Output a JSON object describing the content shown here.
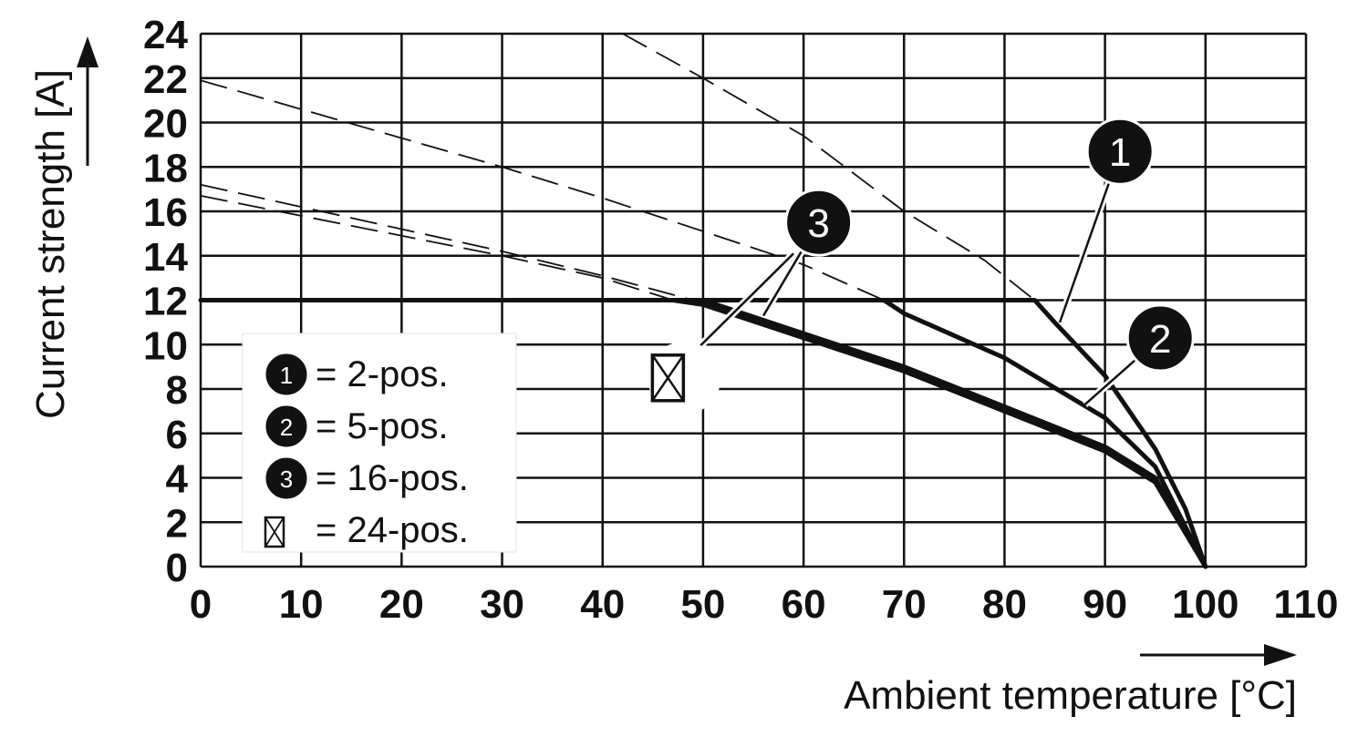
{
  "chart_data": {
    "type": "line",
    "xlabel": "Ambient temperature [°C]",
    "ylabel": "Current strength [A]",
    "xlim": [
      0,
      110
    ],
    "ylim": [
      0,
      24
    ],
    "x_ticks": [
      "0",
      "10",
      "20",
      "30",
      "40",
      "50",
      "60",
      "70",
      "80",
      "90",
      "100",
      "110"
    ],
    "y_ticks": [
      "0",
      "2",
      "4",
      "6",
      "8",
      "10",
      "12",
      "14",
      "16",
      "18",
      "20",
      "22",
      "24"
    ],
    "grid": true,
    "legend_placement": "bottom-left",
    "legend": [
      {
        "marker": "1",
        "label": "= 2-pos."
      },
      {
        "marker": "2",
        "label": "= 5-pos."
      },
      {
        "marker": "3",
        "label": "= 16-pos."
      },
      {
        "marker": "box-x",
        "label": "= 24-pos."
      }
    ],
    "series": [
      {
        "marker": "1",
        "values_dashed": [
          [
            42,
            24
          ],
          [
            50,
            22
          ],
          [
            60,
            19.4
          ],
          [
            70,
            16
          ],
          [
            78,
            13.8
          ],
          [
            83,
            12
          ]
        ],
        "values_derated": [
          [
            0,
            12
          ],
          [
            83,
            12
          ],
          [
            85,
            11
          ],
          [
            90,
            8.6
          ],
          [
            95,
            5.3
          ],
          [
            98,
            2.6
          ],
          [
            100,
            0
          ]
        ]
      },
      {
        "marker": "2",
        "values_dashed": [
          [
            0,
            21.9
          ],
          [
            10,
            20.6
          ],
          [
            20,
            19.3
          ],
          [
            30,
            18.0
          ],
          [
            40,
            16.6
          ],
          [
            50,
            15.1
          ],
          [
            60,
            13.6
          ],
          [
            68,
            12
          ]
        ],
        "values_derated": [
          [
            68,
            12
          ],
          [
            70,
            11.4
          ],
          [
            80,
            9.4
          ],
          [
            90,
            6.7
          ],
          [
            95,
            4.5
          ],
          [
            100,
            0
          ]
        ]
      },
      {
        "marker": "3",
        "values_dashed": [
          [
            0,
            17.2
          ],
          [
            10,
            16.2
          ],
          [
            20,
            15.2
          ],
          [
            30,
            14.2
          ],
          [
            40,
            13.1
          ],
          [
            49,
            12
          ]
        ],
        "values_derated": [
          [
            49,
            12
          ],
          [
            50,
            12
          ],
          [
            60,
            10.5
          ],
          [
            70,
            9
          ],
          [
            80,
            7.2
          ],
          [
            90,
            5.4
          ],
          [
            95,
            4
          ],
          [
            100,
            0
          ]
        ]
      },
      {
        "marker": "box-x",
        "values_dashed": [
          [
            0,
            16.7
          ],
          [
            10,
            15.8
          ],
          [
            20,
            14.9
          ],
          [
            30,
            14.0
          ],
          [
            40,
            13.0
          ],
          [
            47,
            12
          ]
        ],
        "values_derated": [
          [
            47,
            12
          ],
          [
            50,
            11.8
          ],
          [
            60,
            10.3
          ],
          [
            70,
            8.8
          ],
          [
            80,
            7
          ],
          [
            90,
            5.2
          ],
          [
            95,
            3.8
          ],
          [
            100,
            0
          ]
        ]
      }
    ],
    "annotations": [
      {
        "marker": "1",
        "at": [
          91.5,
          18.7
        ],
        "points_to": [
          85.5,
          11.0
        ]
      },
      {
        "marker": "2",
        "at": [
          95.5,
          10.3
        ],
        "points_to": [
          88,
          7.3
        ]
      },
      {
        "marker": "3",
        "at": [
          61.5,
          15.5
        ],
        "points_to": [
          56,
          11.3
        ]
      },
      {
        "marker": "box-x",
        "at": [
          46.5,
          8.5
        ],
        "points_to": [
          59,
          14.1
        ]
      }
    ],
    "colors": {
      "line": "#111111",
      "grid": "#111111",
      "badge": "#111111",
      "background": "#ffffff"
    }
  }
}
